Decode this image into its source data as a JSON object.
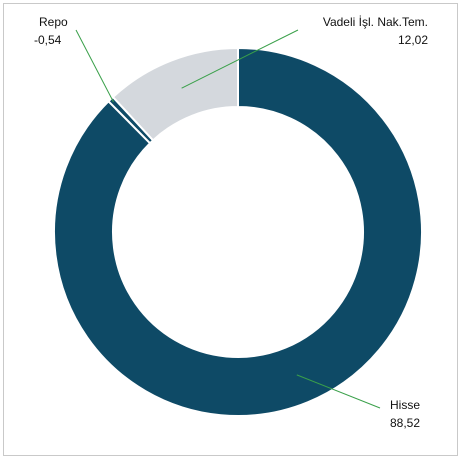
{
  "chart_data": {
    "type": "pie",
    "donut": true,
    "slices": [
      {
        "label": "Hisse",
        "value": 88.52,
        "value_text": "88,52",
        "color": "#0e4a66"
      },
      {
        "label": "Repo",
        "value": -0.54,
        "value_text": "-0,54",
        "color": "#0e4a66"
      },
      {
        "label": "Vadeli İşl. Nak.Tem.",
        "value": 12.02,
        "value_text": "12,02",
        "color": "#d4d8dd"
      }
    ],
    "leader_line_color": "#3aa04a",
    "legend": "none"
  }
}
